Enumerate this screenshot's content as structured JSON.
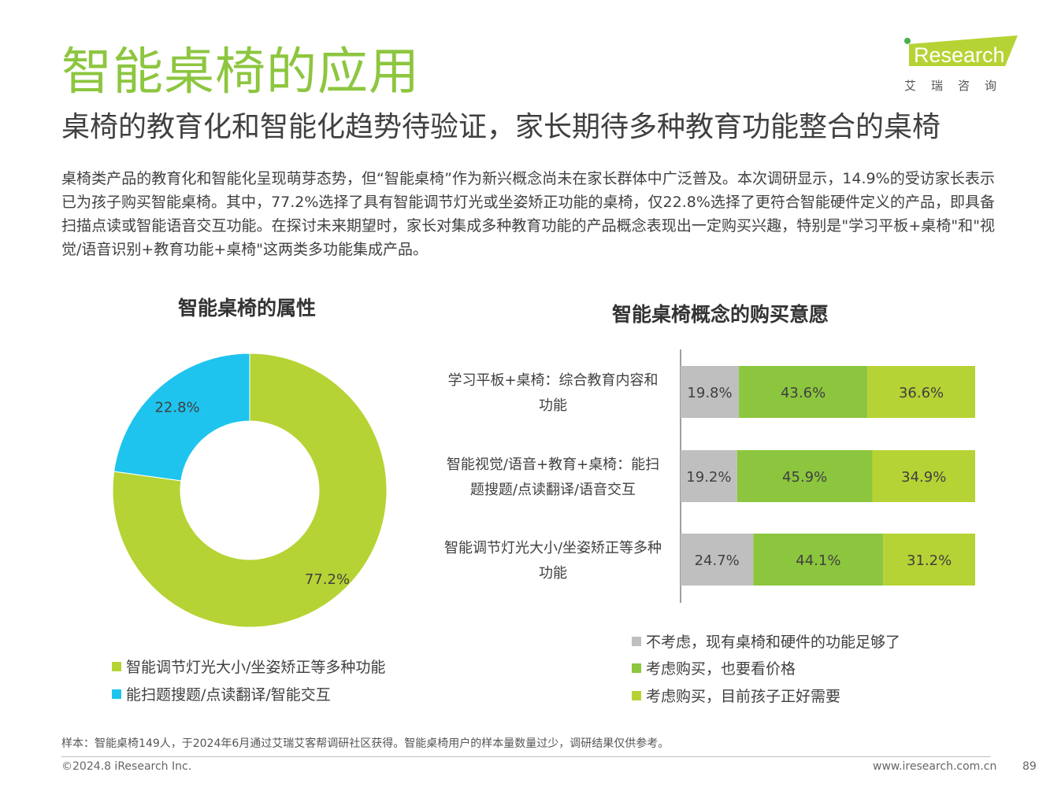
{
  "header": {
    "title": "智能桌椅的应用",
    "subtitle": "桌椅的教育化和智能化趋势待验证，家长期待多种教育功能整合的桌椅",
    "summary": "桌椅类产品的教育化和智能化呈现萌芽态势，但“智能桌椅”作为新兴概念尚未在家长群体中广泛普及。本次调研显示，14.9%的受访家长表示已为孩子购买智能桌椅。其中，77.2%选择了具有智能调节灯光或坐姿矫正功能的桌椅，仅22.8%选择了更符合智能硬件定义的产品，即具备扫描点读或智能语音交互功能。在探讨未来期望时，家长对集成多种教育功能的产品概念表现出一定购买兴趣，特别是\"学习平板+桌椅\"和\"视觉/语音识别+教育功能+桌椅\"这两类多功能集成产品。"
  },
  "logo": {
    "brand_i": "i",
    "brand_rest": "Research",
    "chinese": "艾瑞咨询",
    "icon": "iresearch-logo"
  },
  "colors": {
    "accent_green": "#8dc63f",
    "lime": "#b5d334",
    "mid_green": "#8cc63e",
    "cyan": "#1ec4ee",
    "gray": "#bfbfbf"
  },
  "chart_data": [
    {
      "type": "pie",
      "title": "智能桌椅的属性",
      "donut": true,
      "categories": [
        "智能调节灯光大小/坐姿矫正等多种功能",
        "能扫题搜题/点读翻译/智能交互"
      ],
      "values": [
        77.2,
        22.8
      ],
      "labels": [
        "77.2%",
        "22.8%"
      ],
      "colors": [
        "#b5d334",
        "#1ec4ee"
      ],
      "legend": "bottom-left"
    },
    {
      "type": "bar",
      "orientation": "horizontal",
      "stacked": true,
      "title": "智能桌椅概念的购买意愿",
      "categories": [
        [
          "学习平板+桌椅：综合教育内容和",
          "功能"
        ],
        [
          "智能视觉/语音+教育+桌椅：能扫",
          "题搜题/点读翻译/语音交互"
        ],
        [
          "智能调节灯光大小/坐姿矫正等多种",
          "功能"
        ]
      ],
      "series": [
        {
          "name": "不考虑，现有桌椅和硬件的功能足够了",
          "values": [
            19.8,
            19.2,
            24.7
          ],
          "color": "#bfbfbf",
          "labels": [
            "19.8%",
            "19.2%",
            "24.7%"
          ]
        },
        {
          "name": "考虑购买，也要看价格",
          "values": [
            43.6,
            45.9,
            44.1
          ],
          "color": "#8cc63e",
          "labels": [
            "43.6%",
            "45.9%",
            "44.1%"
          ]
        },
        {
          "name": "考虑购买，目前孩子正好需要",
          "values": [
            36.6,
            34.9,
            31.2
          ],
          "color": "#b5d334",
          "labels": [
            "36.6%",
            "34.9%",
            "31.2%"
          ]
        }
      ],
      "xlim": [
        0,
        100
      ],
      "legend": "bottom"
    }
  ],
  "footer": {
    "note": "样本：智能桌椅149人，于2024年6月通过艾瑞艾客帮调研社区获得。智能桌椅用户的样本量数量过少，调研结果仅供参考。",
    "copyright": "©2024.8 iResearch Inc.",
    "website": "www.iresearch.com.cn",
    "page_number": "89"
  }
}
